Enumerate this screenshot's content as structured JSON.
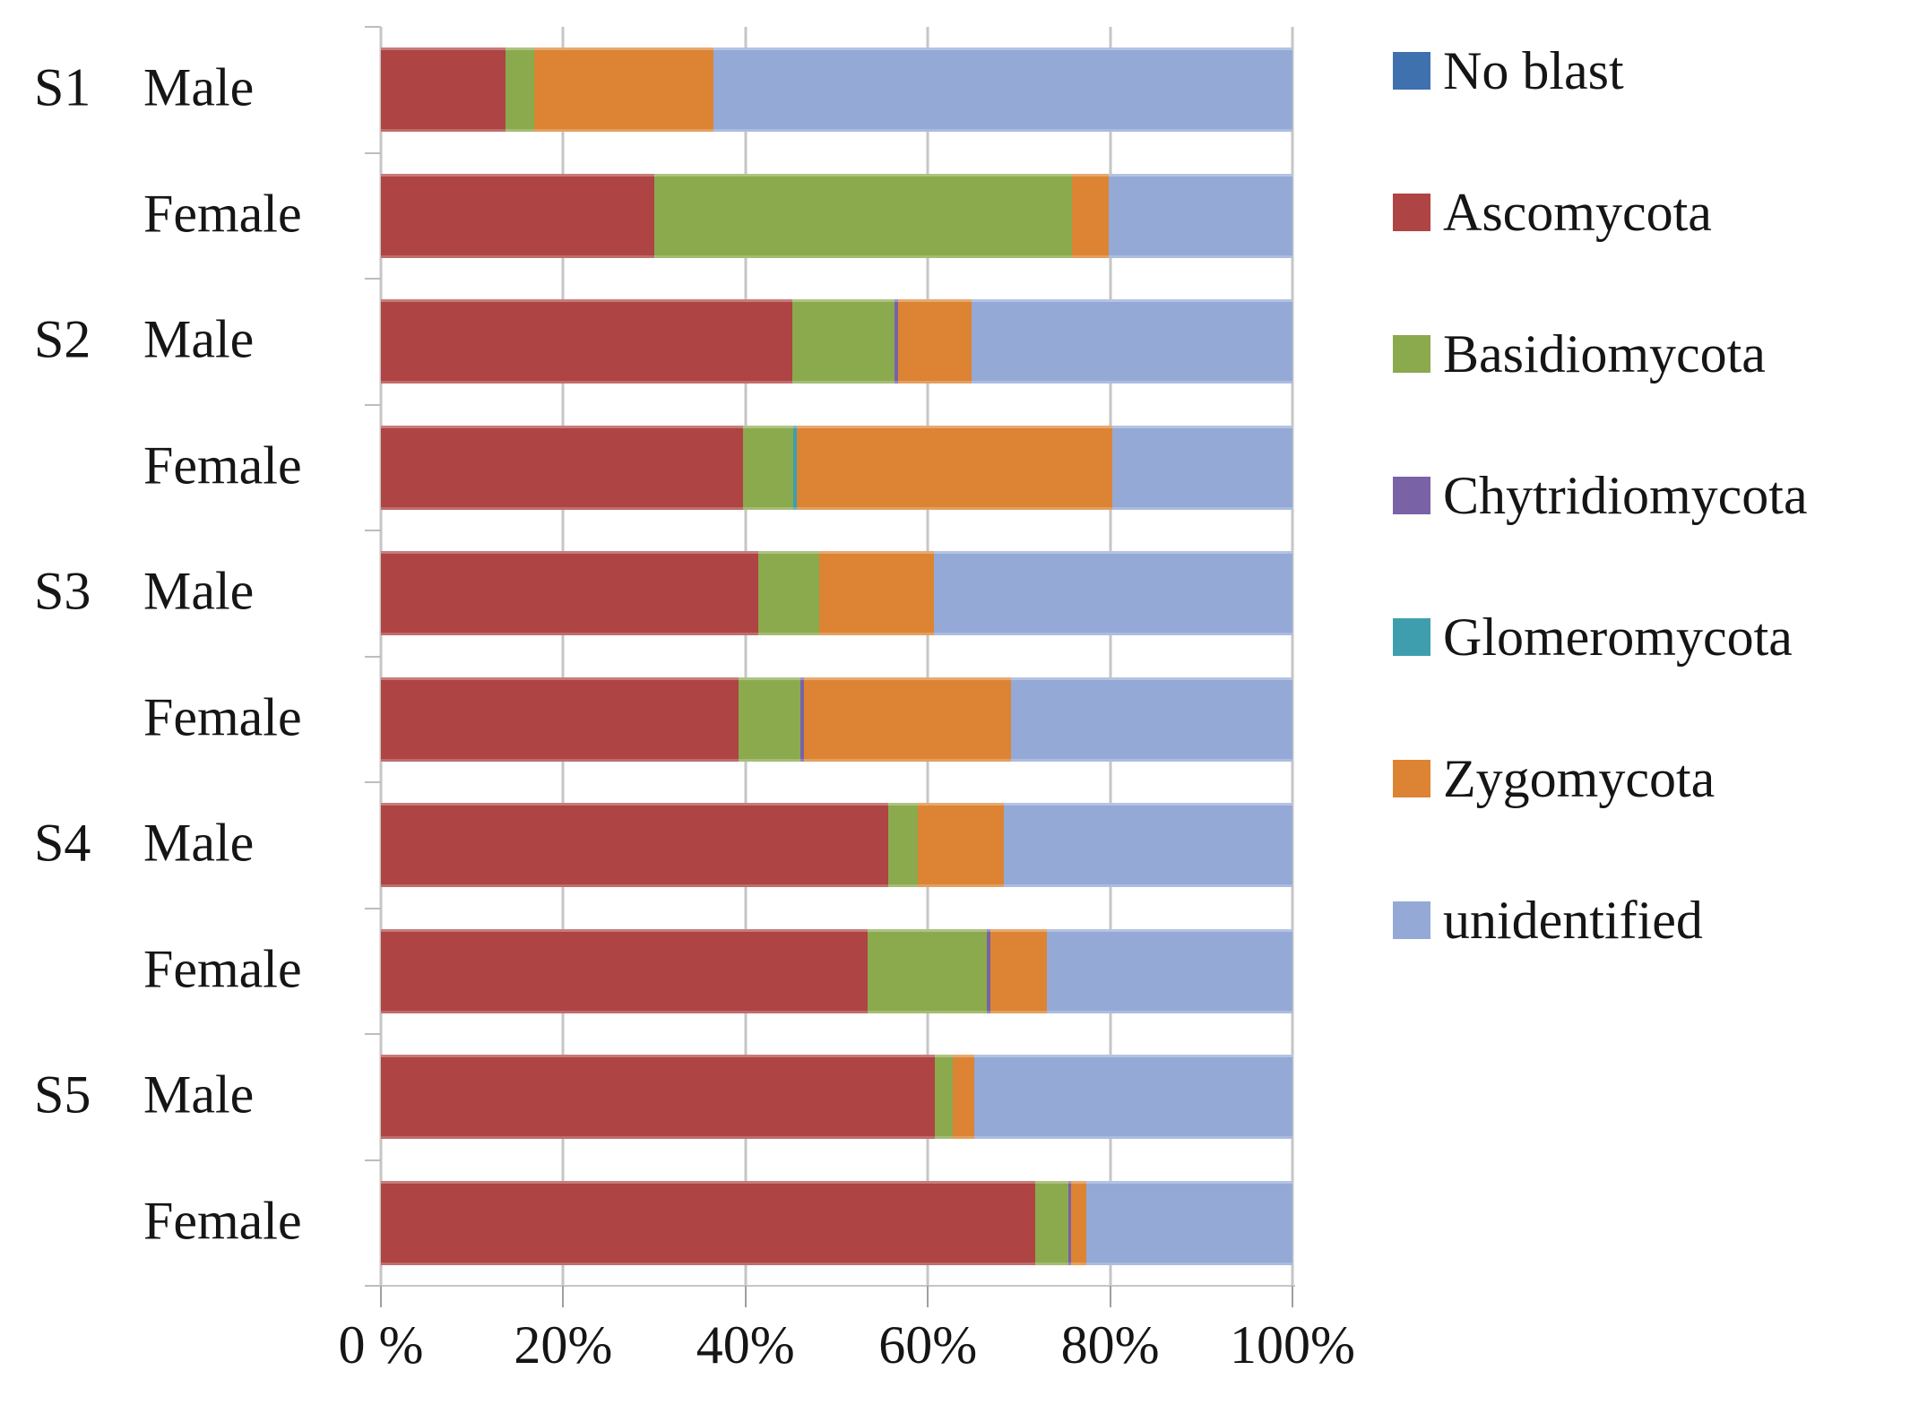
{
  "chart_data": {
    "type": "bar",
    "orientation": "horizontal",
    "stacked": true,
    "unit": "percent",
    "title": "",
    "xlabel": "",
    "ylabel": "",
    "xlim": [
      0,
      100
    ],
    "grid": true,
    "legend_position": "right",
    "categories": [
      "S1 Male",
      "S1 Female",
      "S2 Male",
      "S2 Female",
      "S3 Male",
      "S3 Female",
      "S4 Male",
      "S4 Female",
      "S5 Male",
      "S5 Female"
    ],
    "row_groups": [
      "S1",
      "",
      "S2",
      "",
      "S3",
      "",
      "S4",
      "",
      "S5",
      ""
    ],
    "row_sexes": [
      "Male",
      "Female",
      "Male",
      "Female",
      "Male",
      "Female",
      "Male",
      "Female",
      "Male",
      "Female"
    ],
    "x_tick_labels": [
      "0 %",
      "20%",
      "40%",
      "60%",
      "80%",
      "100%"
    ],
    "x_tick_values": [
      0,
      20,
      40,
      60,
      80,
      100
    ],
    "series": [
      {
        "name": "No blast",
        "color": "#3E71AD",
        "values": [
          0,
          0,
          0,
          0,
          0,
          0,
          0,
          0,
          0,
          0
        ]
      },
      {
        "name": "Ascomycota",
        "color": "#AE4443",
        "values": [
          13.7,
          30.0,
          45.1,
          39.7,
          41.4,
          39.2,
          55.7,
          53.4,
          60.8,
          71.8
        ]
      },
      {
        "name": "Basidiomycota",
        "color": "#8BAA4D",
        "values": [
          3.1,
          45.8,
          11.2,
          5.5,
          6.7,
          6.8,
          3.2,
          13.1,
          1.9,
          3.6
        ]
      },
      {
        "name": "Chytridiomycota",
        "color": "#7962A6",
        "values": [
          0,
          0,
          0.4,
          0,
          0,
          0.4,
          0,
          0.4,
          0,
          0.3
        ]
      },
      {
        "name": "Glomeromycota",
        "color": "#3F9EAE",
        "values": [
          0,
          0,
          0,
          0.4,
          0,
          0,
          0,
          0,
          0,
          0
        ]
      },
      {
        "name": "Zygomycota",
        "color": "#DC8434",
        "values": [
          19.7,
          4.0,
          8.1,
          34.6,
          12.6,
          22.7,
          9.4,
          6.2,
          2.4,
          1.7
        ]
      },
      {
        "name": "unidentified",
        "color": "#94A9D6",
        "values": [
          63.5,
          20.2,
          35.2,
          19.8,
          39.3,
          30.9,
          31.7,
          26.9,
          34.9,
          22.6
        ]
      }
    ],
    "colors": {
      "gridline": "#c6c6c6",
      "tick": "#9f9f9f",
      "text": "#151515",
      "background": "#ffffff"
    }
  }
}
